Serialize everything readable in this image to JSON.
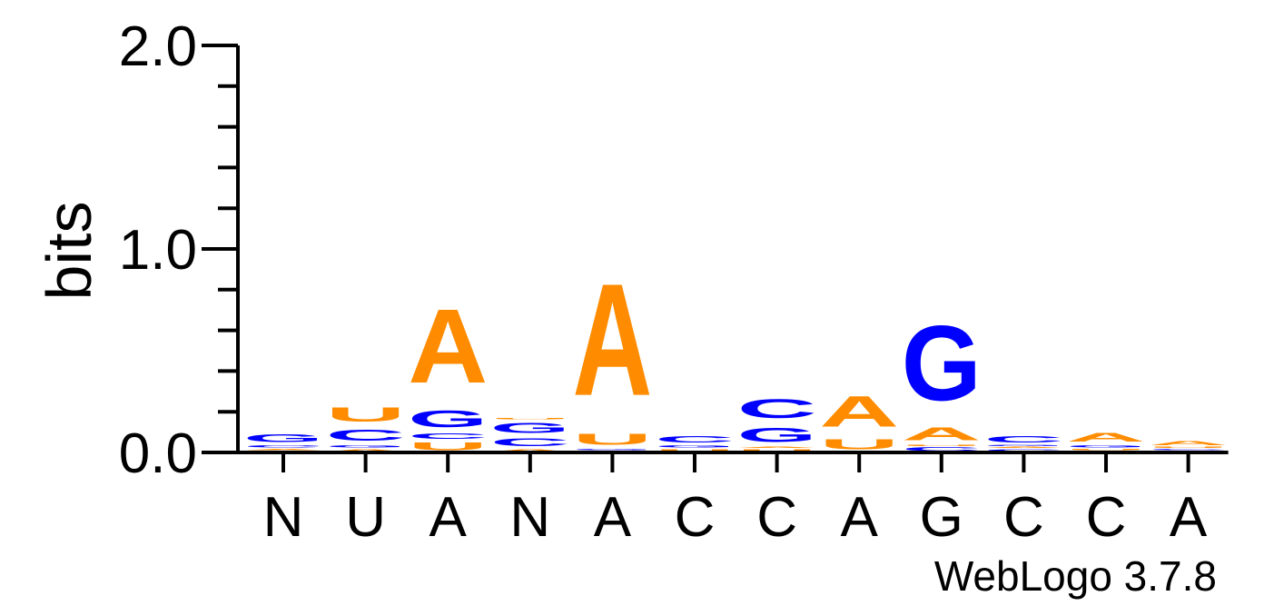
{
  "chart_data": {
    "type": "sequence-logo",
    "ylabel": "bits",
    "ylim": [
      0,
      2
    ],
    "yticks": [
      "0.0",
      "1.0",
      "2.0"
    ],
    "xlabels": [
      "N",
      "U",
      "A",
      "N",
      "A",
      "C",
      "C",
      "A",
      "G",
      "C",
      "C",
      "A"
    ],
    "credit": "WebLogo 3.7.8",
    "colors": {
      "A": "#ff8c00",
      "U": "#ff8c00",
      "C": "#0000ff",
      "G": "#0000ff"
    },
    "positions": [
      [
        [
          "U",
          0.01
        ],
        [
          "A",
          0.01
        ],
        [
          "C",
          0.02
        ],
        [
          "G",
          0.06
        ]
      ],
      [
        [
          "A",
          0.02
        ],
        [
          "G",
          0.02
        ],
        [
          "C",
          0.09
        ],
        [
          "U",
          0.11
        ]
      ],
      [
        [
          "U",
          0.06
        ],
        [
          "C",
          0.04
        ],
        [
          "G",
          0.13
        ],
        [
          "A",
          0.58
        ]
      ],
      [
        [
          "A",
          0.02
        ],
        [
          "C",
          0.06
        ],
        [
          "G",
          0.08
        ],
        [
          "U",
          0.01
        ]
      ],
      [
        [
          "U",
          0.01
        ],
        [
          "G",
          0.01
        ],
        [
          "U",
          0.09
        ],
        [
          "A",
          0.88
        ]
      ],
      [
        [
          "U",
          0.02
        ],
        [
          "G",
          0.02
        ],
        [
          "C",
          0.05
        ]
      ],
      [
        [
          "U",
          0.02
        ],
        [
          "A",
          0.01
        ],
        [
          "G",
          0.11
        ],
        [
          "C",
          0.15
        ]
      ],
      [
        [
          "U",
          0.08
        ],
        [
          "A",
          0.24
        ]
      ],
      [
        [
          "C",
          0.03
        ],
        [
          "U",
          0.01
        ],
        [
          "A",
          0.1
        ],
        [
          "G",
          0.59
        ]
      ],
      [
        [
          "C",
          0.02
        ],
        [
          "A",
          0.01
        ],
        [
          "G",
          0.01
        ],
        [
          "C",
          0.05
        ]
      ],
      [
        [
          "C",
          0.01
        ],
        [
          "U",
          0.01
        ],
        [
          "G",
          0.02
        ],
        [
          "A",
          0.07
        ]
      ],
      [
        [
          "G",
          0.01
        ],
        [
          "C",
          0.01
        ],
        [
          "U",
          0.01
        ],
        [
          "A",
          0.03
        ]
      ]
    ]
  }
}
